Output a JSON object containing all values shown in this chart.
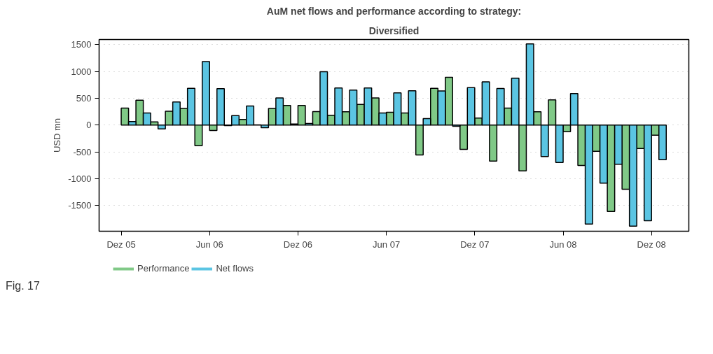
{
  "chart_data": {
    "type": "bar",
    "title": "AuM net flows and performance according to strategy:",
    "subtitle": "Diversified",
    "ylabel": "USD mn",
    "x": [
      "2005-12-16",
      "2006-01-16",
      "2006-02-16",
      "2006-03-16",
      "2006-04-16",
      "2006-05-16",
      "2006-06-16",
      "2006-07-16",
      "2006-08-16",
      "2006-09-16",
      "2006-10-16",
      "2006-11-16",
      "2006-12-16",
      "2007-01-16",
      "2007-02-16",
      "2007-03-16",
      "2007-04-16",
      "2007-05-16",
      "2007-06-16",
      "2007-07-16",
      "2007-08-16",
      "2007-09-16",
      "2007-10-16",
      "2007-11-16",
      "2007-12-16",
      "2008-01-16",
      "2008-02-16",
      "2008-03-16",
      "2008-04-16",
      "2008-05-16",
      "2008-06-16",
      "2008-07-16",
      "2008-08-16",
      "2008-09-16",
      "2008-10-16",
      "2008-11-16",
      "2008-12-16"
    ],
    "series": [
      {
        "name": "Performance",
        "color": "#80c987",
        "values": [
          318,
          465,
          61,
          257,
          309,
          -383,
          -100,
          -9,
          104,
          4,
          309,
          365,
          365,
          252,
          183,
          248,
          387,
          505,
          239,
          226,
          -557,
          687,
          892,
          -452,
          130,
          -670,
          318,
          -853,
          248,
          470,
          -122,
          -753,
          -487,
          -1610,
          -1196,
          -435,
          -187
        ]
      },
      {
        "name": "Net flows",
        "color": "#5bc5e3",
        "values": [
          65,
          226,
          -70,
          430,
          687,
          1183,
          679,
          178,
          357,
          -48,
          505,
          22,
          30,
          996,
          692,
          652,
          692,
          226,
          600,
          639,
          122,
          635,
          -22,
          700,
          805,
          683,
          874,
          1514,
          -587,
          -696,
          587,
          -1844,
          -1083,
          -731,
          -1883,
          -1784,
          -644
        ]
      }
    ],
    "xlim": [
      "2005-10-16",
      "2009-02-17"
    ],
    "xticks": [
      {
        "value": "2005-12",
        "label": "Dez 05"
      },
      {
        "value": "2006-06",
        "label": "Jun 06"
      },
      {
        "value": "2006-12",
        "label": "Dez 06"
      },
      {
        "value": "2007-06",
        "label": "Jun 07"
      },
      {
        "value": "2007-12",
        "label": "Dez 07"
      },
      {
        "value": "2008-06",
        "label": "Jun 08"
      },
      {
        "value": "2008-12",
        "label": "Dez 08"
      }
    ],
    "ylim": [
      -1978,
      1595
    ],
    "yticks": [
      -1500,
      -1000,
      -500,
      0,
      500,
      1000,
      1500
    ],
    "grid": "y",
    "legend": "bottom",
    "annotations": [
      "Fig. 17"
    ]
  }
}
